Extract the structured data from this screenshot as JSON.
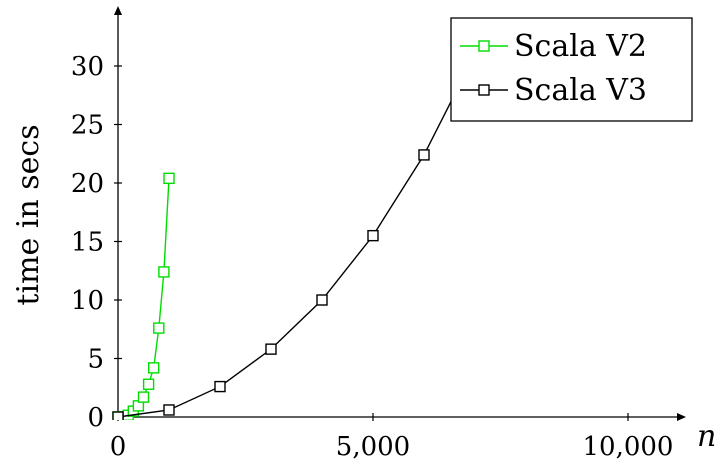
{
  "chart_data": {
    "type": "line",
    "title": "",
    "xlabel": "n",
    "ylabel": "time in secs",
    "xlim": [
      0,
      11000
    ],
    "ylim": [
      0,
      35
    ],
    "xticks": [
      {
        "value": 0,
        "label": "0"
      },
      {
        "value": 5000,
        "label": "5,000"
      },
      {
        "value": 10000,
        "label": "10,000"
      }
    ],
    "yticks": [
      {
        "value": 0,
        "label": "0"
      },
      {
        "value": 5,
        "label": "5"
      },
      {
        "value": 10,
        "label": "10"
      },
      {
        "value": 15,
        "label": "15"
      },
      {
        "value": 20,
        "label": "20"
      },
      {
        "value": 25,
        "label": "25"
      },
      {
        "value": 30,
        "label": "30"
      }
    ],
    "grid": false,
    "legend": "top-right",
    "series": [
      {
        "name": "Scala V2",
        "color": "#00dd00",
        "marker": "square",
        "x": [
          0,
          100,
          200,
          300,
          400,
          500,
          600,
          700,
          800,
          900,
          1000
        ],
        "y": [
          0.0,
          0.02,
          0.15,
          0.5,
          0.95,
          1.7,
          2.8,
          4.2,
          7.6,
          12.4,
          20.4
        ]
      },
      {
        "name": "Scala V3",
        "color": "#000000",
        "marker": "square",
        "x": [
          0,
          1000,
          2000,
          3000,
          4000,
          5000,
          6000,
          7000
        ],
        "y": [
          0.0,
          0.6,
          2.6,
          5.8,
          10.0,
          15.5,
          22.4,
          31.0
        ]
      }
    ]
  }
}
